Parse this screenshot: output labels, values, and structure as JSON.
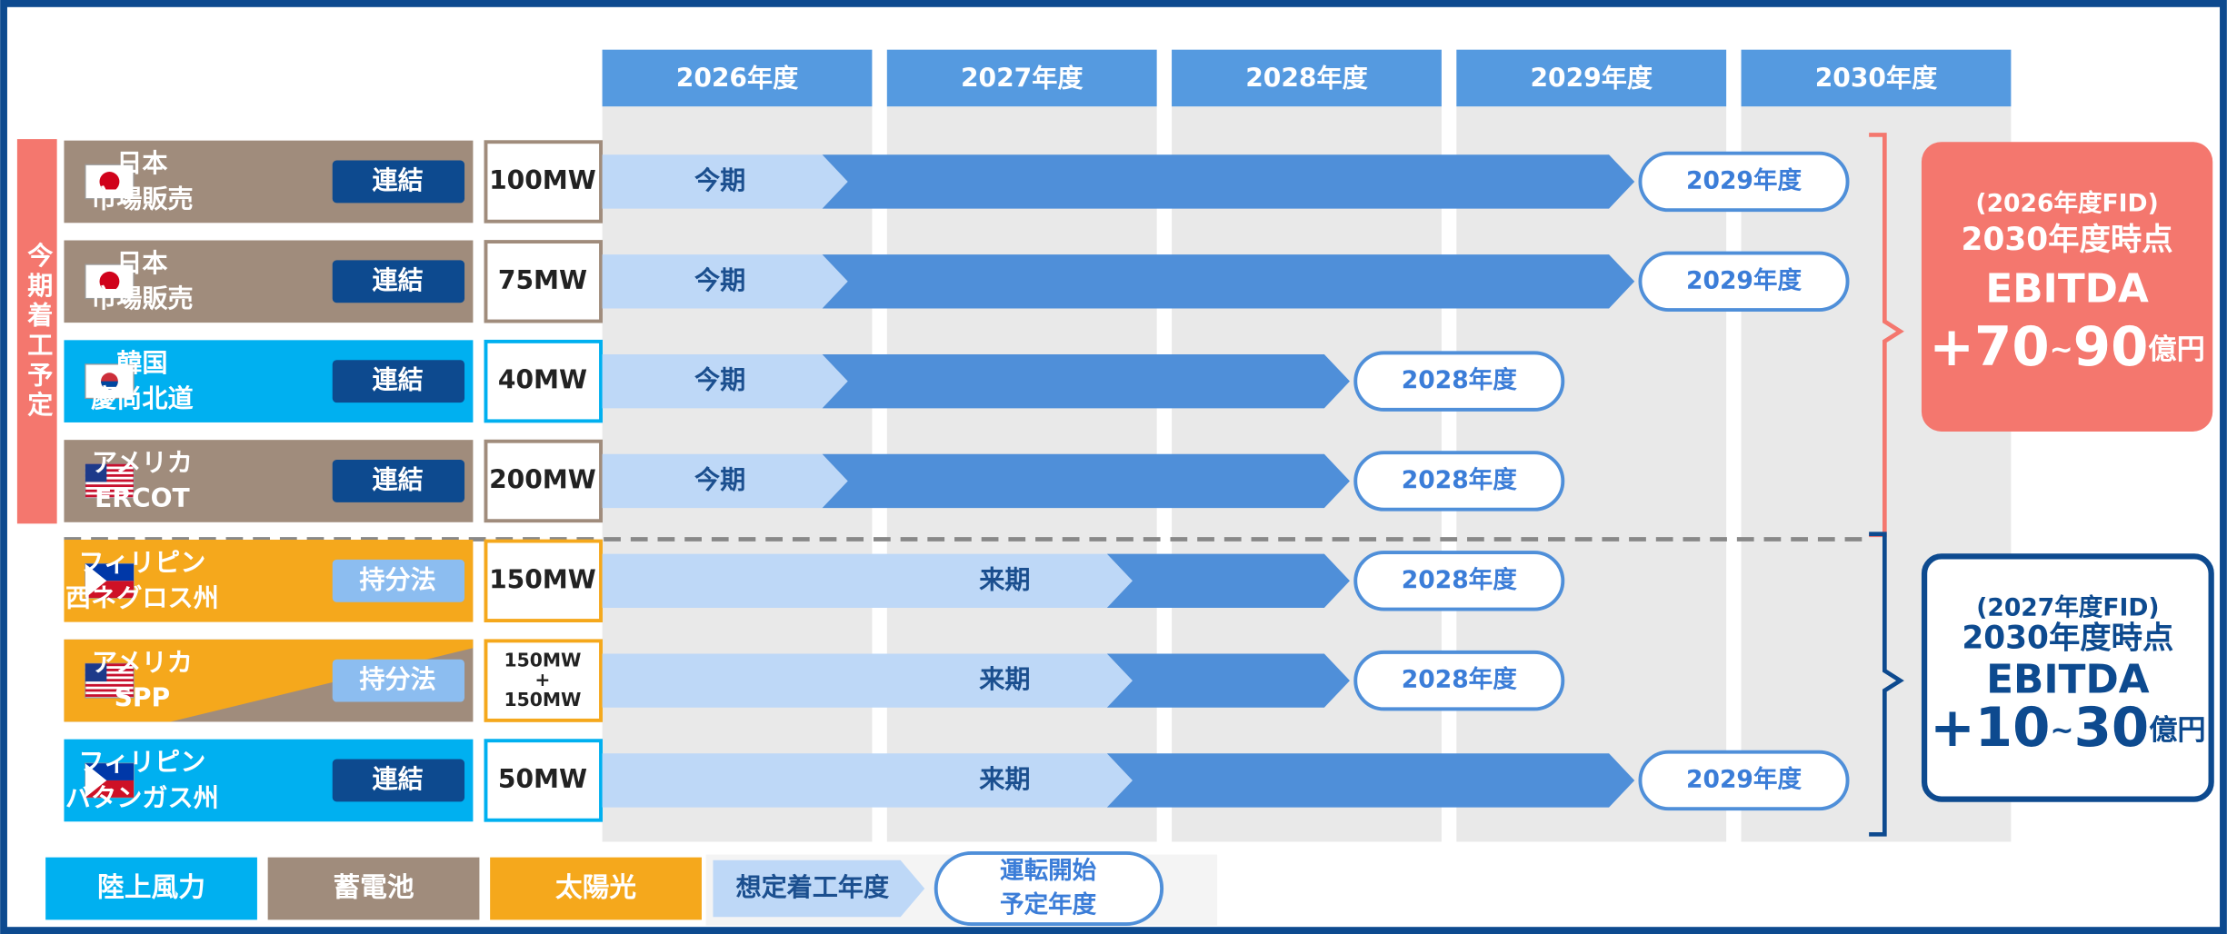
{
  "years": [
    "2026年度",
    "2027年度",
    "2028年度",
    "2029年度",
    "2030年度"
  ],
  "groups": [
    {
      "label": "今期着工予定",
      "color": "#f4776e",
      "rows": [
        {
          "region": [
            "日本",
            "市場販売"
          ],
          "badge": "連結",
          "capacity": [
            "100MW"
          ],
          "start": "今期",
          "end": "2029年度",
          "color": "#a08c7c"
        },
        {
          "region": [
            "日本",
            "市場販売"
          ],
          "badge": "連結",
          "capacity": [
            "75MW"
          ],
          "start": "今期",
          "end": "2029年度",
          "color": "#a08c7c"
        },
        {
          "region": [
            "韓国",
            "慶尚北道"
          ],
          "badge": "連結",
          "capacity": [
            "40MW"
          ],
          "start": "今期",
          "end": "2028年度",
          "color": "#00b0f0"
        },
        {
          "region": [
            "アメリカ",
            "ERCOT"
          ],
          "badge": "連結",
          "capacity": [
            "200MW"
          ],
          "start": "今期",
          "end": "2028年度",
          "color": "#a08c7c"
        }
      ],
      "summary": {
        "fid": "(2026年度FID)",
        "line": "2030年度時点",
        "metric": "EBITDA",
        "from": "+70",
        "sep": "~",
        "to": "90",
        "unit": "億円"
      }
    },
    {
      "color": "#0d4a8f",
      "rows": [
        {
          "region": [
            "フィリピン",
            "西ネグロス州"
          ],
          "badge": "持分法",
          "capacity": [
            "150MW"
          ],
          "start": "来期",
          "end": "2028年度",
          "color": "#f5a81c"
        },
        {
          "region": [
            "アメリカ",
            "SPP"
          ],
          "badge": "持分法",
          "capacity": [
            "150MW",
            "+",
            "150MW"
          ],
          "start": "来期",
          "end": "2028年度",
          "color": "#f5a81c",
          "color2": "#a08c7c"
        },
        {
          "region": [
            "フィリピン",
            "バタンガス州"
          ],
          "badge": "連結",
          "capacity": [
            "50MW"
          ],
          "start": "来期",
          "end": "2029年度",
          "color": "#00b0f0"
        }
      ],
      "summary": {
        "fid": "(2027年度FID)",
        "line": "2030年度時点",
        "metric": "EBITDA",
        "from": "+10",
        "sep": "~",
        "to": "30",
        "unit": "億円"
      }
    }
  ],
  "badge_colors": {
    "連結": "#0d4a8f",
    "持分法": "#8cbdf0"
  },
  "legend": {
    "types": [
      {
        "label": "陸上風力",
        "color": "#00b0f0"
      },
      {
        "label": "蓄電池",
        "color": "#a08c7c"
      },
      {
        "label": "太陽光",
        "color": "#f5a81c"
      }
    ],
    "start": "想定着工年度",
    "end": [
      "運転開始",
      "予定年度"
    ]
  }
}
